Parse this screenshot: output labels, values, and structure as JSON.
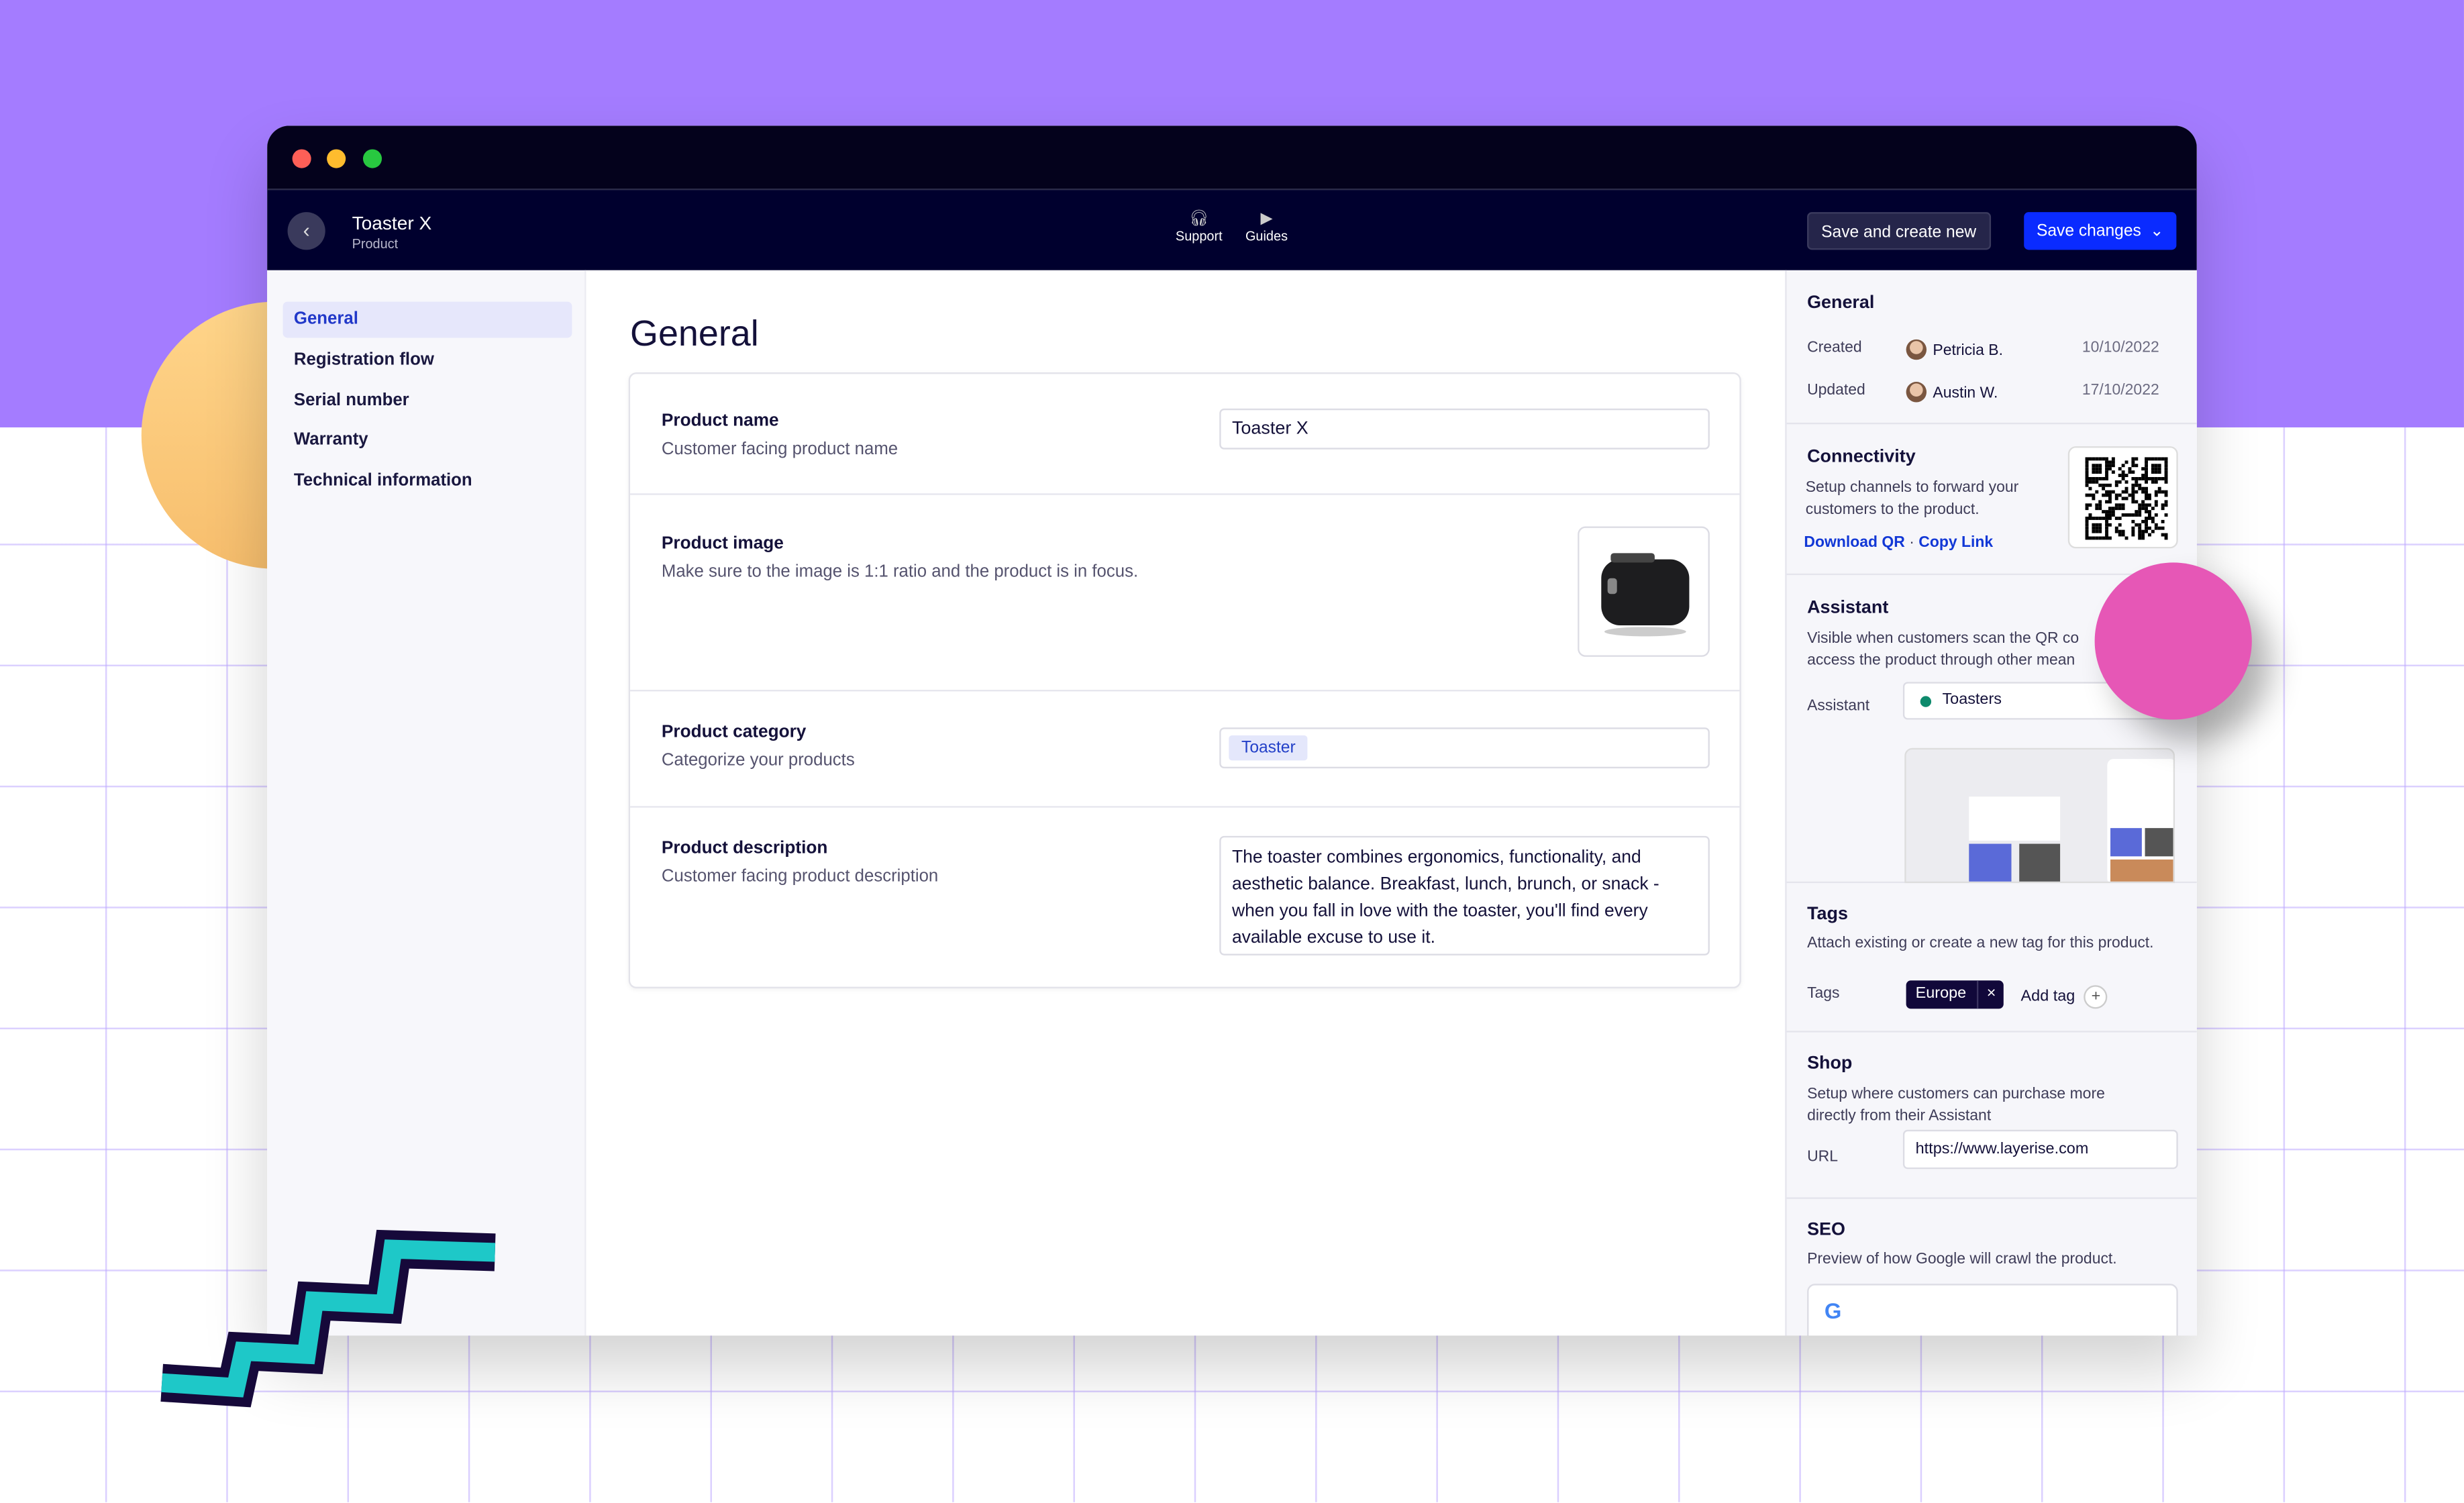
{
  "window": {
    "title": "Toaster X",
    "subtitle": "Product"
  },
  "header": {
    "support": "Support",
    "guides": "Guides",
    "save_new": "Save and create new",
    "save": "Save changes"
  },
  "sidebar": {
    "items": [
      {
        "label": "General",
        "active": true
      },
      {
        "label": "Registration flow"
      },
      {
        "label": "Serial number"
      },
      {
        "label": "Warranty"
      },
      {
        "label": "Technical information"
      }
    ]
  },
  "main": {
    "title": "General",
    "name": {
      "label": "Product name",
      "desc": "Customer facing product name",
      "value": "Toaster X"
    },
    "image": {
      "label": "Product image",
      "desc": "Make sure to the image is 1:1 ratio and the product is in focus."
    },
    "category": {
      "label": "Product category",
      "desc": "Categorize your products",
      "value": "Toaster"
    },
    "description": {
      "label": "Product description",
      "desc": "Customer facing product description",
      "value": "The toaster combines ergonomics, functionality, and aesthetic balance. Breakfast, lunch, brunch, or snack - when you fall in love with the  toaster, you'll find every available excuse to use it."
    }
  },
  "panel": {
    "general": {
      "title": "General",
      "created_label": "Created",
      "created_by": "Petricia B.",
      "created_date": "10/10/2022",
      "updated_label": "Updated",
      "updated_by": "Austin W.",
      "updated_date": "17/10/2022"
    },
    "connectivity": {
      "title": "Connectivity",
      "desc": "Setup channels to forward your customers to the product.",
      "download": "Download QR",
      "sep": "·",
      "copy": "Copy Link"
    },
    "assistant": {
      "title": "Assistant",
      "desc": "Visible when customers scan the QR co access the product through other mean",
      "label": "Assistant",
      "value": "Toasters",
      "status_color": "#0e8a6c"
    },
    "tags": {
      "title": "Tags",
      "desc": "Attach existing or create a new tag for this product.",
      "label": "Tags",
      "tag": "Europe",
      "add": "Add tag"
    },
    "shop": {
      "title": "Shop",
      "desc": "Setup where customers can purchase more directly from their Assistant",
      "url_label": "URL",
      "url": "https://www.layerise.com"
    },
    "seo": {
      "title": "SEO",
      "desc": "Preview of how Google will crawl the product."
    }
  },
  "colors": {
    "accent": "#0a2bff",
    "header": "#00002e",
    "background": "#a47cff"
  }
}
